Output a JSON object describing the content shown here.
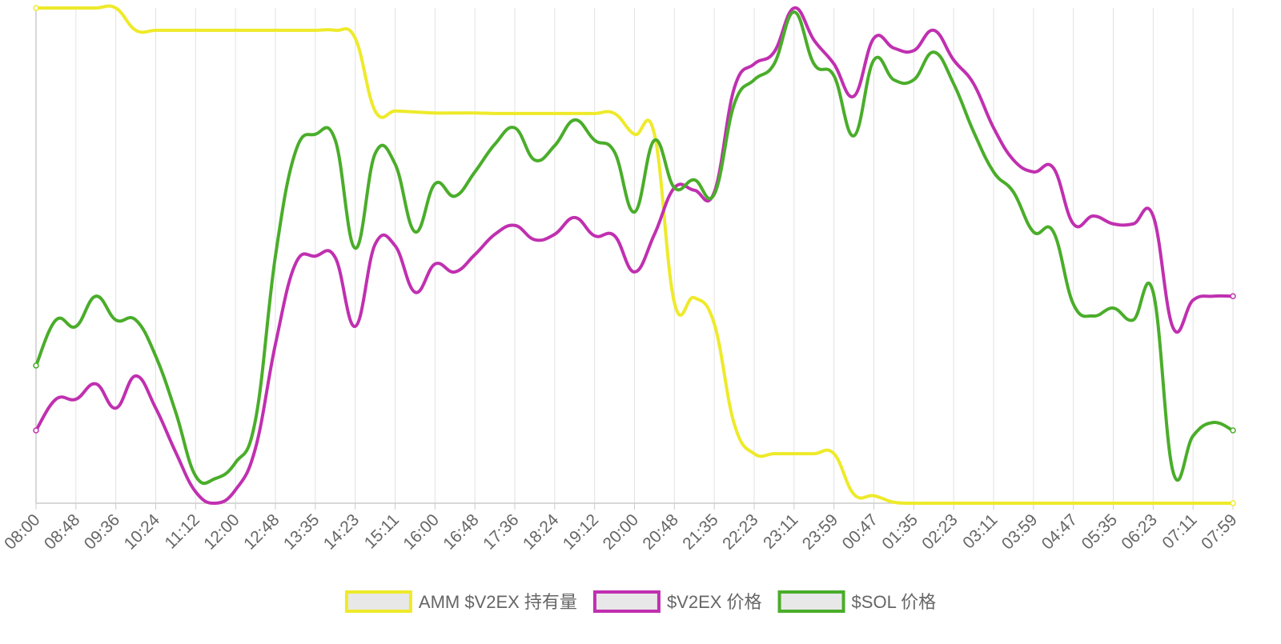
{
  "chart_data": {
    "type": "line",
    "categories": [
      "08:00",
      null,
      "08:48",
      null,
      "09:36",
      null,
      "10:24",
      null,
      "11:12",
      null,
      "12:00",
      null,
      "12:48",
      null,
      "13:35",
      null,
      "14:23",
      null,
      "15:11",
      null,
      "16:00",
      null,
      "16:48",
      null,
      "17:36",
      null,
      "18:24",
      null,
      "19:12",
      null,
      "20:00",
      null,
      "20:48",
      null,
      "21:35",
      null,
      "22:23",
      null,
      "23:11",
      null,
      "23:59",
      null,
      "00:47",
      null,
      "01:35",
      null,
      "02:23",
      null,
      "03:11",
      null,
      "03:59",
      null,
      "04:47",
      null,
      "05:35",
      null,
      "06:23",
      null,
      "07:11",
      null,
      "07:59"
    ],
    "series": [
      {
        "name": "AMM $V2EX 持有量",
        "color": "#eeea2a",
        "values": [
          100,
          100,
          100,
          100,
          100,
          95.5,
          95.5,
          95.5,
          95.5,
          95.5,
          95.5,
          95.5,
          95.5,
          95.5,
          95.5,
          95.5,
          93.9,
          79.2,
          79.2,
          79.0,
          78.8,
          78.8,
          78.8,
          78.7,
          78.7,
          78.7,
          78.7,
          78.7,
          78.7,
          78.7,
          74.5,
          74.5,
          40.5,
          41.5,
          36.2,
          16.0,
          10.0,
          10.0,
          10.0,
          10.0,
          10.0,
          1.8,
          1.5,
          0.2,
          0,
          0,
          0,
          0,
          0,
          0,
          0,
          0,
          0,
          0,
          0,
          0,
          0,
          0,
          0,
          0,
          0
        ]
      },
      {
        "name": "$V2EX 价格",
        "color": "#c030b0",
        "values": [
          14.7,
          21.0,
          21.0,
          24.1,
          19.2,
          25.7,
          19.2,
          10.3,
          2.3,
          0,
          2.7,
          11.1,
          32.1,
          48.3,
          49.9,
          49.6,
          35.7,
          52.3,
          52.0,
          42.6,
          48.3,
          46.7,
          50.2,
          54.3,
          56.1,
          53.2,
          54.3,
          57.7,
          54.0,
          54.0,
          46.7,
          54.3,
          63.7,
          63.2,
          62.8,
          83.8,
          88.7,
          91.1,
          100,
          93.5,
          88.7,
          82.2,
          93.9,
          91.9,
          91.4,
          95.5,
          89.5,
          84.7,
          75.8,
          69.3,
          66.9,
          67.7,
          56.4,
          58.0,
          56.4,
          56.4,
          58.0,
          35.4,
          41.0,
          41.8,
          41.8
        ]
      },
      {
        "name": "$SOL 价格",
        "color": "#4aad2a",
        "values": [
          27.8,
          37.0,
          35.7,
          41.8,
          37.0,
          37.0,
          29.7,
          18.4,
          5.5,
          5.0,
          8.2,
          16.8,
          49.9,
          70.9,
          74.5,
          73.3,
          51.5,
          70.6,
          68.5,
          54.8,
          64.5,
          62.0,
          66.9,
          72.5,
          75.8,
          69.3,
          72.2,
          77.4,
          73.3,
          70.9,
          58.8,
          73.3,
          63.7,
          65.3,
          62.4,
          80.6,
          85.5,
          88.7,
          99.2,
          88.7,
          86.3,
          74.2,
          89.5,
          85.5,
          85.5,
          91.1,
          84.7,
          75.0,
          66.9,
          62.8,
          54.8,
          54.8,
          40.2,
          37.8,
          39.4,
          37.0,
          42.6,
          6.3,
          13.6,
          16.3,
          14.7
        ]
      }
    ],
    "ylim": [
      0,
      100
    ],
    "grid": true,
    "legend": "bottom"
  }
}
